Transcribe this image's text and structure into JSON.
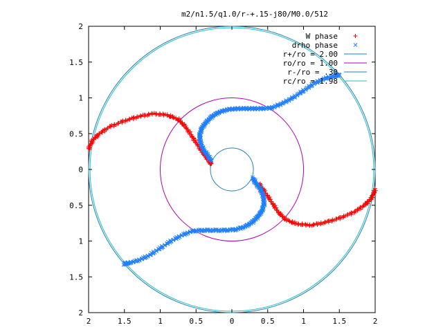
{
  "chart_data": {
    "type": "scatter",
    "title": "m2/n1.5/q1.0/r-+.15-j80/M0.0/512",
    "xlabel": "",
    "ylabel": "",
    "xlim": [
      -2,
      2
    ],
    "ylim": [
      -2,
      2
    ],
    "x_tick_values": [
      -2,
      -1.5,
      -1,
      -0.5,
      0,
      0.5,
      1,
      1.5,
      2
    ],
    "x_tick_labels": [
      "2",
      "1.5",
      "1",
      "0.5",
      "0",
      "0.5",
      "1",
      "1.5",
      "2"
    ],
    "y_tick_values": [
      2,
      1.5,
      1,
      0.5,
      0,
      -0.5,
      -1,
      -1.5,
      -2
    ],
    "y_tick_labels": [
      "2",
      "1.5",
      "1",
      "0.5",
      "0",
      "0.5",
      "1",
      "1.5",
      "2"
    ],
    "grid": false,
    "legend_position": "top-right",
    "series": [
      {
        "name": "W phase",
        "kind": "points",
        "marker": "+",
        "color": "#ff0000",
        "arms": [
          {
            "x": [
              -2.0,
              -1.95,
              -1.85,
              -1.7,
              -1.5,
              -1.3,
              -1.1,
              -0.9,
              -0.75,
              -0.65,
              -0.55,
              -0.45,
              -0.38,
              -0.32,
              -0.29
            ],
            "y": [
              0.28,
              0.4,
              0.5,
              0.6,
              0.68,
              0.74,
              0.78,
              0.76,
              0.7,
              0.6,
              0.45,
              0.3,
              0.2,
              0.12,
              0.08
            ]
          },
          {
            "x": [
              2.0,
              1.95,
              1.85,
              1.7,
              1.5,
              1.3,
              1.1,
              0.9,
              0.75,
              0.65,
              0.55,
              0.45,
              0.38
            ],
            "y": [
              -0.28,
              -0.4,
              -0.5,
              -0.6,
              -0.68,
              -0.74,
              -0.78,
              -0.76,
              -0.7,
              -0.6,
              -0.45,
              -0.3,
              -0.2
            ]
          }
        ]
      },
      {
        "name": "drho phase",
        "kind": "points",
        "marker": "x",
        "color": "#1f7fff",
        "arms": [
          {
            "x": [
              -0.29,
              -0.34,
              -0.4,
              -0.44,
              -0.45,
              -0.42,
              -0.36,
              -0.28,
              -0.18,
              -0.05,
              0.1,
              0.25,
              0.4,
              0.55,
              0.7,
              0.85,
              1.0,
              1.15,
              1.3,
              1.45,
              1.5
            ],
            "y": [
              0.12,
              0.2,
              0.28,
              0.38,
              0.48,
              0.58,
              0.66,
              0.74,
              0.8,
              0.84,
              0.85,
              0.85,
              0.85,
              0.86,
              0.92,
              1.0,
              1.1,
              1.2,
              1.27,
              1.31,
              1.32
            ]
          },
          {
            "x": [
              0.29,
              0.34,
              0.4,
              0.44,
              0.45,
              0.42,
              0.36,
              0.28,
              0.18,
              0.05,
              -0.1,
              -0.25,
              -0.4,
              -0.55,
              -0.7,
              -0.85,
              -1.0,
              -1.15,
              -1.3,
              -1.45,
              -1.5
            ],
            "y": [
              -0.12,
              -0.2,
              -0.28,
              -0.38,
              -0.48,
              -0.58,
              -0.66,
              -0.74,
              -0.8,
              -0.84,
              -0.85,
              -0.85,
              -0.85,
              -0.86,
              -0.92,
              -1.0,
              -1.1,
              -1.2,
              -1.27,
              -1.31,
              -1.32
            ]
          }
        ]
      },
      {
        "name": "r+/ro = 2.00",
        "kind": "circle",
        "radius": 2.0,
        "color": "#1f7fbf"
      },
      {
        "name": "ro/ro = 1.00",
        "kind": "circle",
        "radius": 1.0,
        "color": "#b000b0"
      },
      {
        "name": "r-/ro = .30",
        "kind": "circle",
        "radius": 0.3,
        "color": "#1f7fbf"
      },
      {
        "name": "rc/ro = 1.98",
        "kind": "circle",
        "radius": 1.98,
        "color": "#1fbfbf"
      }
    ]
  }
}
